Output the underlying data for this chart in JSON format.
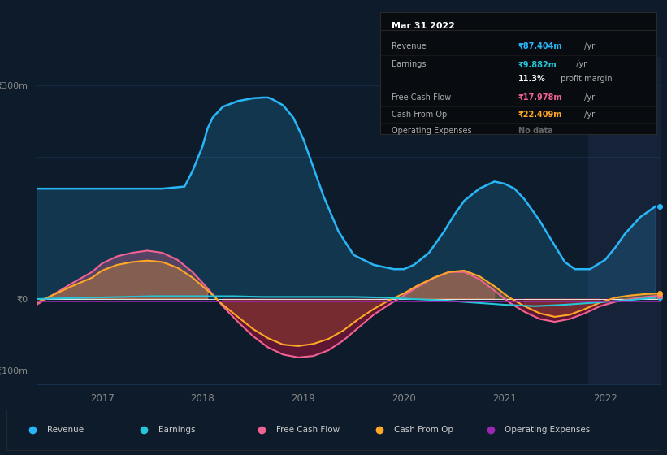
{
  "bg_color": "#0d1b2a",
  "chart_bg": "#0d1b2a",
  "highlight_bg": "#152238",
  "ylim": [
    -120,
    340
  ],
  "xlim_start": 2016.35,
  "xlim_end": 2022.55,
  "xticks": [
    2017,
    2018,
    2019,
    2020,
    2021,
    2022
  ],
  "highlight_x_start": 2021.83,
  "highlight_x_end": 2022.55,
  "revenue_color": "#29b6f6",
  "earnings_color": "#26c6da",
  "fcf_color": "#f06292",
  "cashfromop_color": "#ffa726",
  "opex_color": "#9c27b0",
  "zero_line_color": "#ffffff",
  "grid_color": "#1e3a5f",
  "tooltip_bg": "#080c10",
  "tooltip_border": "#2a2a2a",
  "revenue_x": [
    2016.35,
    2016.5,
    2016.8,
    2017.0,
    2017.3,
    2017.6,
    2017.82,
    2017.9,
    2018.0,
    2018.05,
    2018.1,
    2018.2,
    2018.35,
    2018.5,
    2018.6,
    2018.65,
    2018.7,
    2018.8,
    2018.9,
    2019.0,
    2019.1,
    2019.2,
    2019.35,
    2019.5,
    2019.7,
    2019.9,
    2020.0,
    2020.1,
    2020.25,
    2020.4,
    2020.5,
    2020.6,
    2020.75,
    2020.9,
    2021.0,
    2021.1,
    2021.2,
    2021.35,
    2021.5,
    2021.6,
    2021.7,
    2021.85,
    2022.0,
    2022.1,
    2022.2,
    2022.35,
    2022.5
  ],
  "revenue_y": [
    155,
    155,
    155,
    155,
    155,
    155,
    158,
    180,
    215,
    240,
    255,
    270,
    278,
    282,
    283,
    283,
    280,
    272,
    255,
    225,
    185,
    145,
    95,
    62,
    48,
    42,
    42,
    48,
    65,
    95,
    118,
    138,
    155,
    165,
    162,
    155,
    140,
    110,
    75,
    52,
    42,
    42,
    55,
    72,
    92,
    115,
    130
  ],
  "earnings_x": [
    2016.35,
    2016.6,
    2016.9,
    2017.2,
    2017.5,
    2017.8,
    2018.0,
    2018.3,
    2018.6,
    2018.9,
    2019.2,
    2019.5,
    2019.8,
    2020.1,
    2020.4,
    2020.7,
    2021.0,
    2021.3,
    2021.6,
    2021.9,
    2022.2,
    2022.5
  ],
  "earnings_y": [
    0,
    1,
    2,
    3,
    4,
    4,
    4,
    4,
    3,
    3,
    3,
    3,
    2,
    0,
    -2,
    -5,
    -8,
    -10,
    -8,
    -5,
    -2,
    2
  ],
  "fcf_x": [
    2016.35,
    2016.5,
    2016.7,
    2016.9,
    2017.0,
    2017.15,
    2017.3,
    2017.45,
    2017.6,
    2017.75,
    2017.9,
    2018.05,
    2018.2,
    2018.35,
    2018.5,
    2018.65,
    2018.8,
    2018.95,
    2019.1,
    2019.25,
    2019.4,
    2019.55,
    2019.7,
    2019.85,
    2020.0,
    2020.15,
    2020.3,
    2020.45,
    2020.6,
    2020.75,
    2020.9,
    2021.05,
    2021.2,
    2021.35,
    2021.5,
    2021.65,
    2021.8,
    2021.95,
    2022.1,
    2022.25,
    2022.4,
    2022.55
  ],
  "fcf_y": [
    -8,
    5,
    22,
    38,
    50,
    60,
    65,
    68,
    65,
    55,
    38,
    15,
    -10,
    -32,
    -52,
    -68,
    -78,
    -82,
    -80,
    -72,
    -58,
    -40,
    -22,
    -8,
    5,
    18,
    30,
    38,
    38,
    28,
    12,
    -5,
    -18,
    -28,
    -32,
    -28,
    -20,
    -10,
    -4,
    0,
    3,
    5
  ],
  "cashfromop_x": [
    2016.35,
    2016.5,
    2016.7,
    2016.9,
    2017.0,
    2017.15,
    2017.3,
    2017.45,
    2017.6,
    2017.75,
    2017.9,
    2018.05,
    2018.2,
    2018.35,
    2018.5,
    2018.65,
    2018.8,
    2018.95,
    2019.1,
    2019.25,
    2019.4,
    2019.55,
    2019.7,
    2019.85,
    2020.0,
    2020.15,
    2020.3,
    2020.45,
    2020.6,
    2020.75,
    2020.9,
    2021.05,
    2021.2,
    2021.35,
    2021.5,
    2021.65,
    2021.8,
    2021.95,
    2022.1,
    2022.25,
    2022.4,
    2022.55
  ],
  "cashfromop_y": [
    -5,
    5,
    18,
    30,
    40,
    48,
    52,
    54,
    52,
    44,
    30,
    12,
    -8,
    -25,
    -42,
    -55,
    -64,
    -66,
    -63,
    -56,
    -44,
    -28,
    -14,
    -2,
    8,
    20,
    30,
    38,
    40,
    32,
    18,
    2,
    -10,
    -20,
    -25,
    -22,
    -14,
    -5,
    2,
    5,
    7,
    8
  ],
  "opex_x": [
    2016.35,
    2017.0,
    2017.5,
    2018.0,
    2018.5,
    2019.0,
    2019.5,
    2020.0,
    2020.5,
    2021.0,
    2021.5,
    2022.0,
    2022.55
  ],
  "opex_y": [
    -3,
    -3,
    -3,
    -3,
    -3,
    -3,
    -3,
    -3,
    -3,
    -3,
    -3,
    -3,
    -3
  ],
  "legend_items": [
    {
      "label": "Revenue",
      "color": "#29b6f6"
    },
    {
      "label": "Earnings",
      "color": "#26c6da"
    },
    {
      "label": "Free Cash Flow",
      "color": "#f06292"
    },
    {
      "label": "Cash From Op",
      "color": "#ffa726"
    },
    {
      "label": "Operating Expenses",
      "color": "#9c27b0"
    }
  ],
  "tooltip_title": "Mar 31 2022",
  "tooltip_rows": [
    {
      "label": "Revenue",
      "value": "₹87.404m",
      "suffix": " /yr",
      "value_color": "#29b6f6",
      "separator": true
    },
    {
      "label": "Earnings",
      "value": "₹9.882m",
      "suffix": " /yr",
      "value_color": "#26c6da",
      "separator": false
    },
    {
      "label": "",
      "value": "11.3%",
      "suffix": " profit margin",
      "value_color": "#ffffff",
      "bold": true,
      "separator": true
    },
    {
      "label": "Free Cash Flow",
      "value": "₹17.978m",
      "suffix": " /yr",
      "value_color": "#f06292",
      "separator": true
    },
    {
      "label": "Cash From Op",
      "value": "₹22.409m",
      "suffix": " /yr",
      "value_color": "#ffa726",
      "separator": true
    },
    {
      "label": "Operating Expenses",
      "value": "No data",
      "suffix": "",
      "value_color": "#666666",
      "separator": false
    }
  ]
}
